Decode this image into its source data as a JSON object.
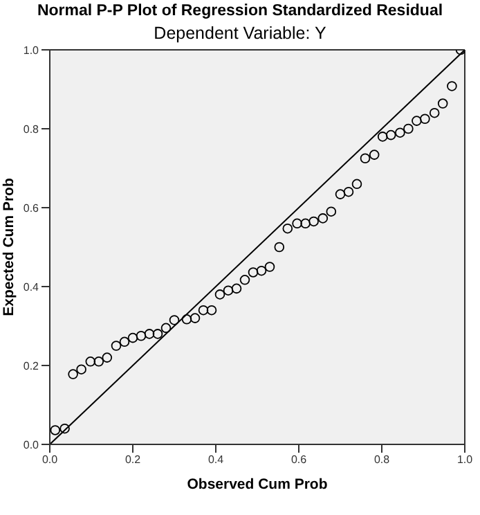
{
  "chart_data": {
    "type": "scatter",
    "title": "Normal P-P Plot of Regression Standardized Residual",
    "subtitle": "Dependent Variable: Y",
    "xlabel": "Observed Cum Prob",
    "ylabel": "Expected Cum Prob",
    "xlim": [
      0,
      1
    ],
    "ylim": [
      0,
      1
    ],
    "xticks": [
      {
        "value": 0,
        "label": "0.0"
      },
      {
        "value": 0.2,
        "label": "0.2"
      },
      {
        "value": 0.4,
        "label": "0.4"
      },
      {
        "value": 0.6,
        "label": "0.6"
      },
      {
        "value": 0.8,
        "label": "0.8"
      },
      {
        "value": 1,
        "label": "1.0"
      }
    ],
    "yticks": [
      {
        "value": 0,
        "label": "0.0"
      },
      {
        "value": 0.2,
        "label": "0.2"
      },
      {
        "value": 0.4,
        "label": "0.4"
      },
      {
        "value": 0.6,
        "label": "0.6"
      },
      {
        "value": 0.8,
        "label": "0.8"
      },
      {
        "value": 1,
        "label": "1.0"
      }
    ],
    "series": [
      {
        "marker": "circle",
        "color": "#000000",
        "x": [
          0.013,
          0.036,
          0.056,
          0.076,
          0.098,
          0.118,
          0.138,
          0.16,
          0.18,
          0.2,
          0.22,
          0.24,
          0.26,
          0.28,
          0.3,
          0.33,
          0.35,
          0.37,
          0.39,
          0.41,
          0.43,
          0.45,
          0.47,
          0.49,
          0.51,
          0.53,
          0.553,
          0.573,
          0.596,
          0.616,
          0.636,
          0.658,
          0.678,
          0.7,
          0.72,
          0.74,
          0.76,
          0.782,
          0.802,
          0.822,
          0.844,
          0.864,
          0.884,
          0.904,
          0.927,
          0.947,
          0.969,
          0.99
        ],
        "values": [
          0.036,
          0.04,
          0.178,
          0.19,
          0.21,
          0.21,
          0.22,
          0.25,
          0.26,
          0.27,
          0.275,
          0.28,
          0.28,
          0.295,
          0.315,
          0.317,
          0.32,
          0.34,
          0.34,
          0.38,
          0.39,
          0.395,
          0.417,
          0.436,
          0.44,
          0.45,
          0.5,
          0.547,
          0.56,
          0.56,
          0.565,
          0.573,
          0.59,
          0.634,
          0.64,
          0.66,
          0.725,
          0.734,
          0.78,
          0.784,
          0.79,
          0.8,
          0.82,
          0.825,
          0.84,
          0.864,
          0.908,
          1.0
        ]
      },
      {
        "type": "line",
        "marker": "none",
        "color": "#000000",
        "line_style": "solid",
        "x": [
          0,
          1
        ],
        "values": [
          0,
          1
        ]
      }
    ]
  }
}
